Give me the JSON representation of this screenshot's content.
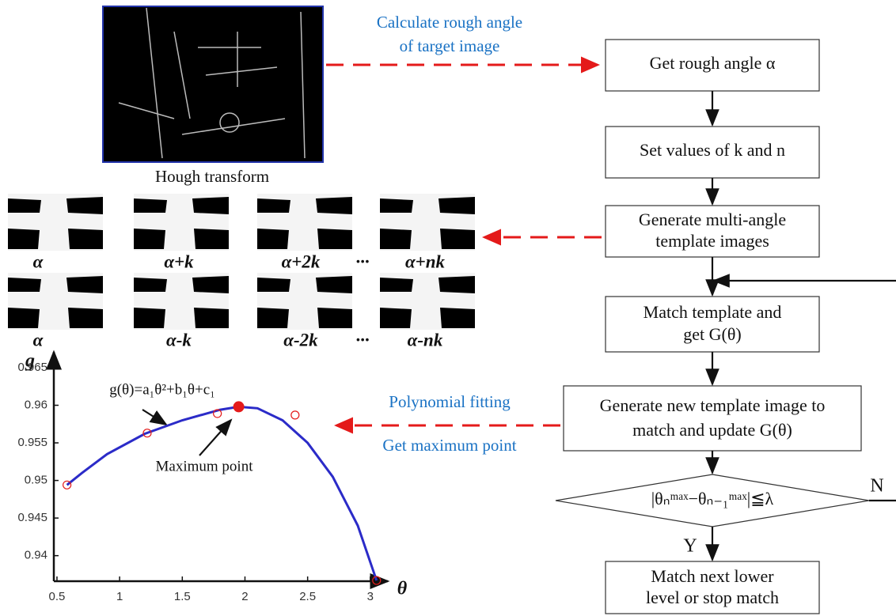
{
  "hough": {
    "label": "Hough transform"
  },
  "annotations": {
    "rough_angle": [
      "Calculate rough angle",
      "of  target image"
    ],
    "fitting": [
      "Polynomial fitting",
      "Get maximum point"
    ]
  },
  "flow": [
    {
      "lines": [
        "Get rough angle α"
      ]
    },
    {
      "lines": [
        "Set values of k and n"
      ]
    },
    {
      "lines": [
        "Generate multi-angle",
        "template images"
      ]
    },
    {
      "lines": [
        "Match template and",
        "get G(θ)"
      ]
    },
    {
      "lines": [
        "Generate new template image to",
        "match and update G(θ)"
      ]
    },
    {
      "lines": [
        "|θₙᵐᵃˣ−θₙ₋₁ᵐᵃˣ|≦λ"
      ],
      "no": "N",
      "yes": "Y"
    },
    {
      "lines": [
        "Match next  lower",
        "level  or  stop match"
      ]
    }
  ],
  "templates": {
    "rows": [
      [
        "α",
        "α+k",
        "α+2k",
        "···",
        "α+nk"
      ],
      [
        "α",
        "α-k",
        "α-2k",
        "···",
        "α-nk"
      ]
    ]
  },
  "chart_data": {
    "type": "line",
    "xlabel": "θ",
    "ylabel": "g",
    "annotations": [
      "g(θ)=a₁θ²+b₁θ+c₁",
      "Maximum point"
    ],
    "xlim": [
      0.475,
      3.14
    ],
    "ylim": [
      0.9366,
      0.9671
    ],
    "xticks": [
      0.5,
      1,
      1.5,
      2,
      2.5,
      3
    ],
    "yticks": [
      0.94,
      0.945,
      0.95,
      0.955,
      0.96,
      0.965
    ],
    "series": [
      {
        "type": "line",
        "color": "#2b2bc8",
        "x": [
          0.58,
          0.7,
          0.9,
          1.2,
          1.5,
          1.8,
          1.95,
          2.1,
          2.3,
          2.5,
          2.7,
          2.9,
          3.05
        ],
        "values": [
          0.9494,
          0.951,
          0.9535,
          0.9562,
          0.958,
          0.9594,
          0.9598,
          0.9596,
          0.958,
          0.955,
          0.9505,
          0.944,
          0.9367
        ]
      },
      {
        "type": "scatter",
        "color": "#e41a1a",
        "x": [
          0.58,
          1.22,
          1.78,
          2.4,
          3.05
        ],
        "values": [
          0.9494,
          0.9563,
          0.9589,
          0.9587,
          0.9367
        ]
      },
      {
        "type": "max",
        "color": "#e41a1a",
        "x": [
          1.95
        ],
        "values": [
          0.9598
        ]
      }
    ]
  }
}
